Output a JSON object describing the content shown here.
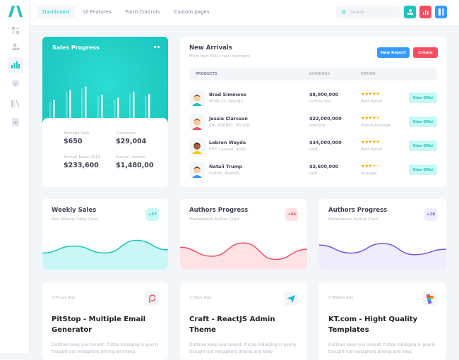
{
  "header": {
    "nav": [
      "Dashboard",
      "UI Features",
      "Form Controls",
      "Custom pages"
    ],
    "active_nav": 0,
    "search_placeholder": "Search"
  },
  "sidebar": {
    "icons": [
      "layout-icon",
      "users-icon",
      "chart-icon",
      "shield-icon",
      "library-icon",
      "add-file-icon"
    ],
    "active": 2
  },
  "sales_progress": {
    "title": "Sales Progress",
    "bars": [
      [
        55,
        60
      ],
      [
        88,
        94
      ],
      [
        100,
        106
      ],
      [
        72,
        78
      ],
      [
        62,
        68
      ],
      [
        83,
        89
      ],
      [
        75,
        81
      ]
    ],
    "stats": [
      {
        "label": "Average Sale",
        "value": "$650"
      },
      {
        "label": "Comission",
        "value": "$29,004"
      },
      {
        "label": "Annual Taxes 2019",
        "value": "$233,600"
      },
      {
        "label": "Annual Income",
        "value": "$1,480,00"
      }
    ]
  },
  "new_arrivals": {
    "title": "New Arrivals",
    "subtitle": "More than 400+ new members",
    "new_report": "New Report",
    "create": "Create",
    "columns": [
      "PRODUCTS",
      "EARNINGS",
      "RATING"
    ],
    "rows": [
      {
        "name": "Brad Simmons",
        "tech": "HTML, JS, ReactJS",
        "earnings": "$8,000,000",
        "status": "In Proccess",
        "rating": 5,
        "rating_label": "Best Rated",
        "action": "View Offer"
      },
      {
        "name": "Jessie Clarcson",
        "tech": "C#, ASP.NET, MS SQL",
        "earnings": "$23,000,000",
        "status": "Pending",
        "rating": 4.5,
        "rating_label": "Above Avarage",
        "action": "View Offer"
      },
      {
        "name": "Lebron Wayde",
        "tech": "PHP, Laravel, VueJS",
        "earnings": "$34,000,000",
        "status": "Paid",
        "rating": 5,
        "rating_label": "Best Rated",
        "action": "View Offer"
      },
      {
        "name": "Natali Trump",
        "tech": "Python, ReactJS",
        "earnings": "$2,600,000",
        "status": "Paid",
        "rating": 3.5,
        "rating_label": "Avarage",
        "action": "View Offer"
      }
    ]
  },
  "stat_cards": [
    {
      "title": "Weekly Sales",
      "subtitle": "Your Weekly Sales Chart",
      "badge": "+57",
      "color": "#1bc5bd",
      "fill": "#c9f7f5",
      "badge_bg": "#c9f7f5",
      "values": [
        30,
        52,
        30,
        70,
        40
      ]
    },
    {
      "title": "Authors Progress",
      "subtitle": "Marketplace Author Chart",
      "badge": "+94",
      "color": "#f64e60",
      "fill": "#ffe2e5",
      "badge_bg": "#ffe2e5",
      "values": [
        48,
        20,
        62,
        10,
        42
      ]
    },
    {
      "title": "Authors Progress",
      "subtitle": "Marketplace Author Chart",
      "badge": "+28",
      "color": "#6b5ce7",
      "fill": "#eeecfd",
      "badge_bg": "#eeecfd",
      "values": [
        55,
        30,
        60,
        25,
        42
      ]
    }
  ],
  "posts": [
    {
      "ago": "7 Hours Ago",
      "title": "PitStop - Multiple Email Generator",
      "desc": "Outlines keep you honest. If stop  indulging in poorly thought-out metaphors driving and keep",
      "icon": "pitstop-logo-icon"
    },
    {
      "ago": "2 Days Ago",
      "title": "Craft - ReactJS Admin Theme",
      "desc": "Outlines keep you honest. If stop  indulging in poorly thought-out metaphors driving and keep",
      "icon": "paper-plane-icon"
    },
    {
      "ago": "5 Weeks Ago",
      "title": "KT.com - Hight Quality Templates",
      "desc": "Outlines keep you honest. If stop  indulging in poorly thought-out metaphors driving and keep",
      "icon": "kt-logo-icon"
    }
  ]
}
